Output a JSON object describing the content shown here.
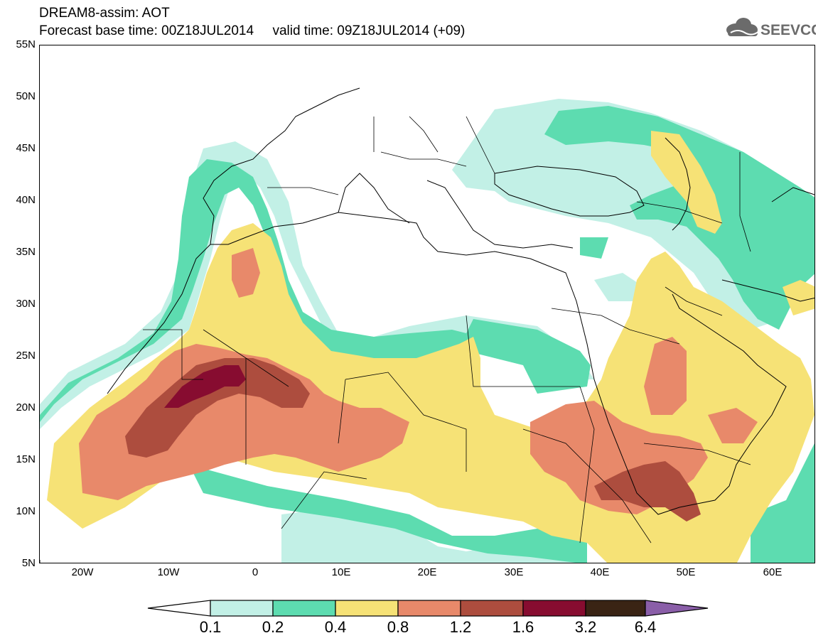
{
  "header": {
    "title_line1": "DREAM8-assim: AOT",
    "title_line2": "Forecast base time: 00Z18JUL2014     valid time: 09Z18JUL2014 (+09)",
    "logo_text": "SEEVCCC"
  },
  "map": {
    "lat_labels": [
      "55N",
      "50N",
      "45N",
      "40N",
      "35N",
      "30N",
      "25N",
      "20N",
      "15N",
      "10N",
      "5N"
    ],
    "lon_labels": [
      "20W",
      "10W",
      "0",
      "10E",
      "20E",
      "30E",
      "40E",
      "50E",
      "60E"
    ]
  },
  "legend": {
    "labels": [
      "0.1",
      "0.2",
      "0.4",
      "0.8",
      "1.2",
      "1.6",
      "3.2",
      "6.4"
    ],
    "colors": [
      "#c2f0e6",
      "#5ddcb0",
      "#f6e276",
      "#e8896a",
      "#ad4d3e",
      "#870c30",
      "#3a2414",
      "#8a5ea8"
    ]
  }
}
